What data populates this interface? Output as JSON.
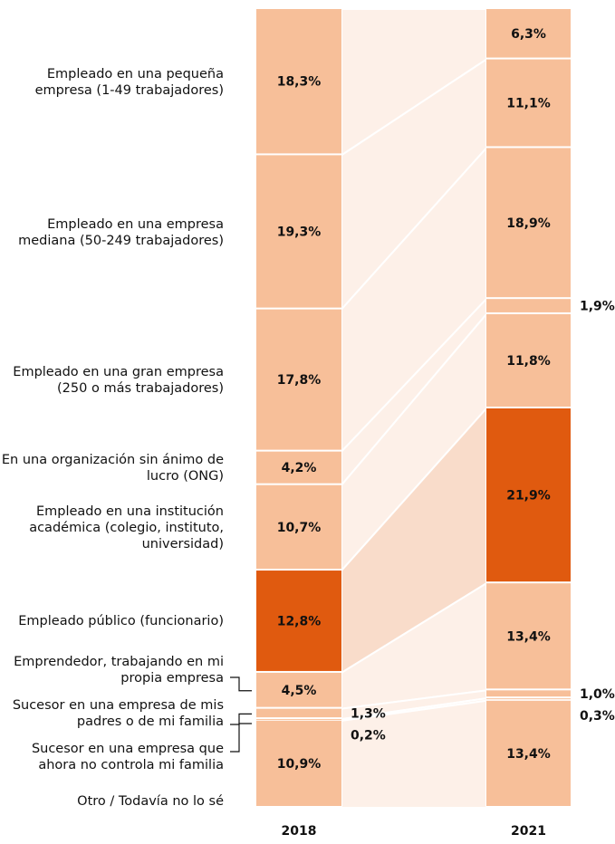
{
  "chart_data": {
    "type": "stacked_flow",
    "categories": [
      "Empleado en una pequeña empresa (1-49 trabajadores)",
      "Empleado en una empresa mediana (50-249 trabajadores)",
      "Empleado en una gran empresa (250 o más trabajadores)",
      "En una organización sin ánimo de lucro (ONG)",
      "Empleado en una institución académica (colegio, instituto, universidad)",
      "Empleado público (funcionario)",
      "Emprendedor, trabajando en mi propia empresa",
      "Sucesor en una empresa de mis padres o de mi familia",
      "Sucesor en una empresa que ahora no controla mi familia",
      "Otro / Todavía no lo sé"
    ],
    "series": [
      {
        "name": "2018",
        "color": "#f7bf99",
        "values": [
          18.3,
          19.3,
          17.8,
          4.2,
          10.7,
          12.8,
          4.5,
          1.3,
          0.2,
          10.9
        ],
        "value_labels": [
          "18,3%",
          "19,3%",
          "17,8%",
          "4,2%",
          "10,7%",
          "12,8%",
          "4,5%",
          "1,3%",
          "0,2%",
          "10,9%"
        ]
      },
      {
        "name": "2021",
        "color": "#f7bf99",
        "values": [
          6.3,
          11.1,
          18.9,
          1.9,
          11.8,
          21.9,
          13.4,
          1.0,
          0.3,
          13.4
        ],
        "value_labels": [
          "6,3%",
          "11,1%",
          "18,9%",
          "1,9%",
          "11,8%",
          "21,9%",
          "13,4%",
          "1,0%",
          "0,3%",
          "13,4%"
        ]
      }
    ],
    "highlight": 5,
    "highlight_color": "#e05a0f",
    "ylim": [
      0,
      100
    ]
  }
}
